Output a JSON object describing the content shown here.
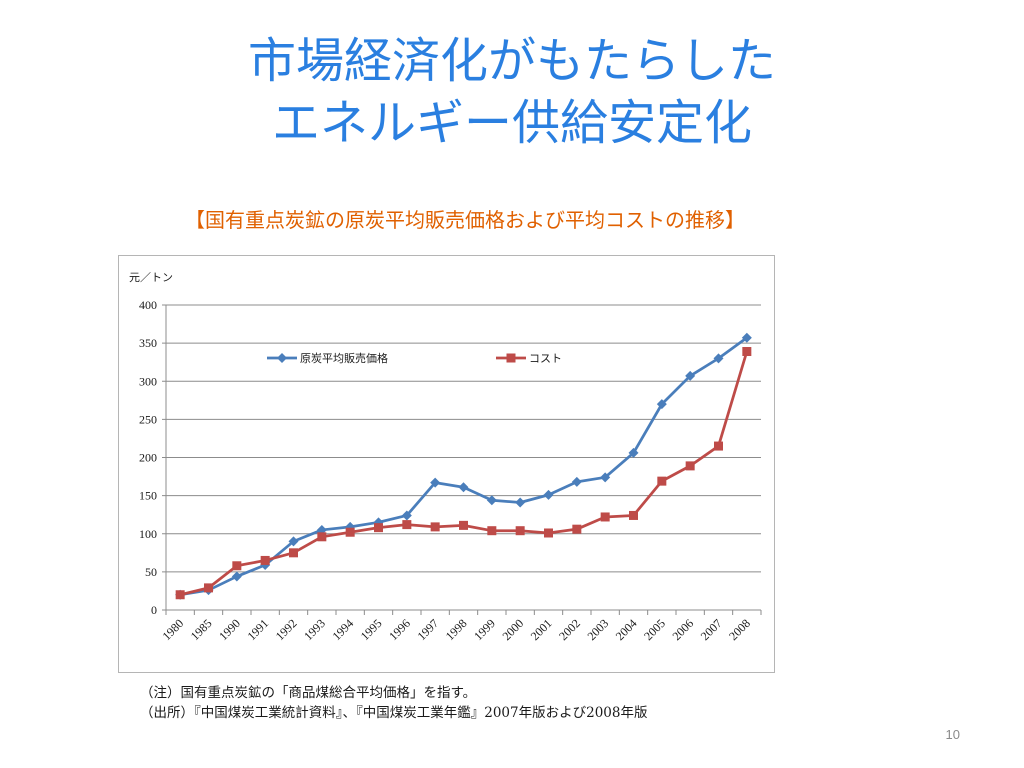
{
  "slide": {
    "title_line1": "市場経済化がもたらした",
    "title_line2": "エネルギー供給安定化",
    "chart_caption": "【国有重点炭鉱の原炭平均販売価格および平均コストの推移】",
    "note": "（注）国有重点炭鉱の「商品煤総合平均価格」を指す。",
    "source": "（出所）『中国煤炭工業統計資料』、『中国煤炭工業年鑑』2007年版および2008年版",
    "page_number": "10"
  },
  "colors": {
    "title": "#2a7fe0",
    "caption": "#e06000",
    "series_price": "#4a7ebb",
    "series_cost": "#be4b48",
    "grid": "#8c8c8c"
  },
  "chart_data": {
    "type": "line",
    "title": "",
    "ylabel": "元／トン",
    "xlabel": "",
    "ylim": [
      0,
      400
    ],
    "yticks": [
      0,
      50,
      100,
      150,
      200,
      250,
      300,
      350,
      400
    ],
    "grid": true,
    "legend_position": "top",
    "categories": [
      "1980",
      "1985",
      "1990",
      "1991",
      "1992",
      "1993",
      "1994",
      "1995",
      "1996",
      "1997",
      "1998",
      "1999",
      "2000",
      "2001",
      "2002",
      "2003",
      "2004",
      "2005",
      "2006",
      "2007",
      "2008"
    ],
    "series": [
      {
        "name": "原炭平均販売価格",
        "marker": "diamond",
        "values": [
          20,
          26,
          44,
          59,
          90,
          105,
          109,
          115,
          124,
          167,
          161,
          144,
          141,
          151,
          168,
          174,
          206,
          270,
          307,
          330,
          357
        ]
      },
      {
        "name": "コスト",
        "marker": "square",
        "values": [
          20,
          29,
          58,
          65,
          75,
          96,
          102,
          108,
          112,
          109,
          111,
          104,
          104,
          101,
          106,
          122,
          124,
          169,
          189,
          215,
          339
        ]
      }
    ]
  }
}
